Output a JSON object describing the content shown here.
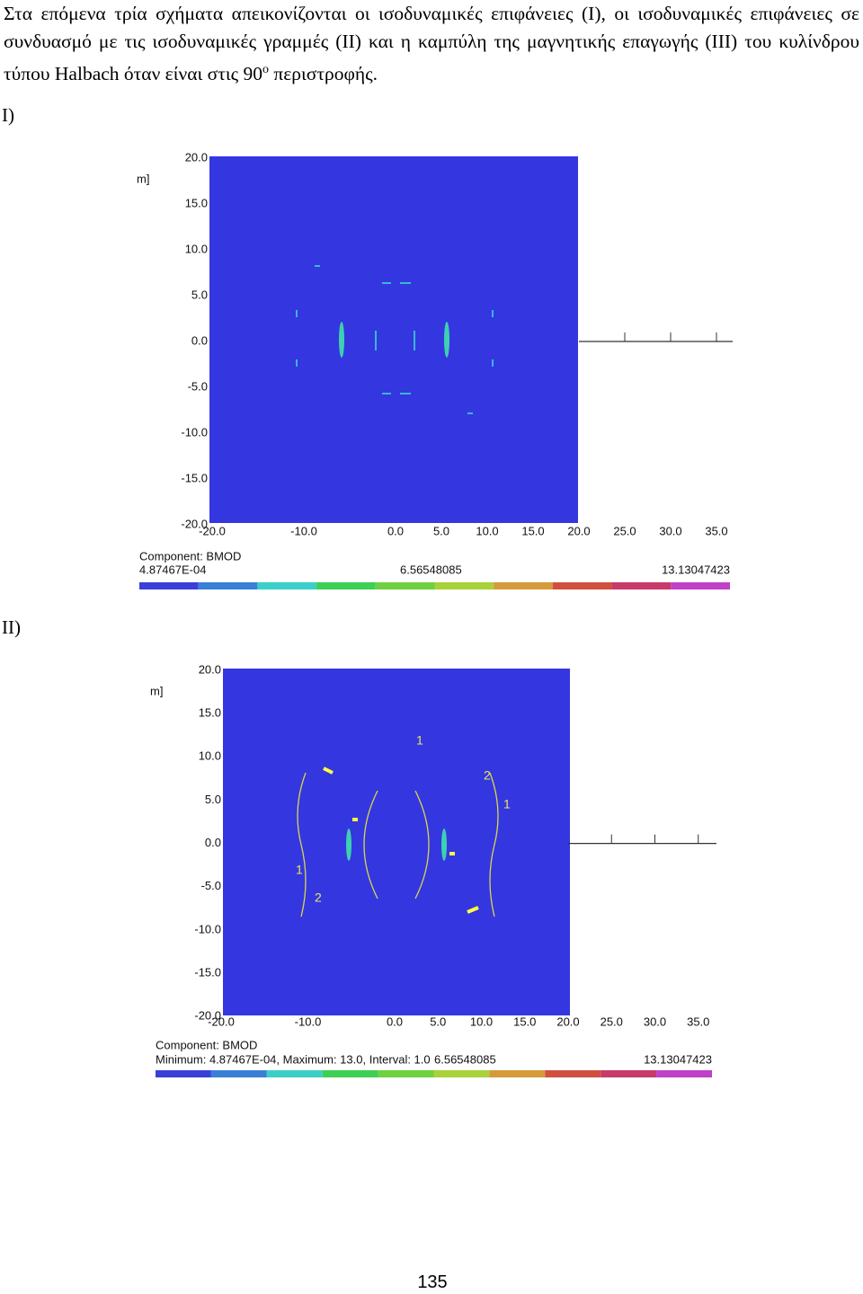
{
  "paragraph": {
    "text": "Στα επόμενα τρία σχήματα απεικονίζονται οι ισοδυναμικές επιφάνειες (I), οι ισοδυναμικές επιφάνειες σε συνδυασμό με τις ισοδυναμικές γραμμές (II) και η καμπύλη της μαγνητικής επαγωγής (III) του κυλίνδρου τύπου Halbach όταν είναι στις 90",
    "superscript": "ο",
    "text_end": " περιστροφής."
  },
  "figures": [
    {
      "label": "I)",
      "y_axis_label": "m]",
      "yticks": [
        "20.0",
        "15.0",
        "10.0",
        "5.0",
        "0.0",
        "-5.0",
        "-10.0",
        "-15.0",
        "-20.0"
      ],
      "xticks": [
        "-20.0",
        "-10.0",
        "0.0",
        "5.0",
        "10.0",
        "15.0",
        "20.0",
        "25.0",
        "30.0",
        "35.0"
      ],
      "component": "Component: BMOD",
      "scale_min": "4.87467E-04",
      "scale_mid": "6.56548085",
      "scale_max": "13.13047423"
    },
    {
      "label": "II)",
      "y_axis_label": "m]",
      "yticks": [
        "20.0",
        "15.0",
        "10.0",
        "5.0",
        "0.0",
        "-5.0",
        "-10.0",
        "-15.0",
        "-20.0"
      ],
      "xticks": [
        "-20.0",
        "-10.0",
        "0.0",
        "5.0",
        "10.0",
        "15.0",
        "20.0",
        "25.0",
        "30.0",
        "35.0"
      ],
      "component": "Component: BMOD",
      "scale_min": "Minimum: 4.87467E-04, Maximum: 13.0, Interval: 1.0",
      "scale_mid": "6.56548085",
      "scale_max": "13.13047423",
      "contour_labels": [
        "1",
        "2",
        "1",
        "1",
        "2"
      ]
    }
  ],
  "page_number": "135"
}
